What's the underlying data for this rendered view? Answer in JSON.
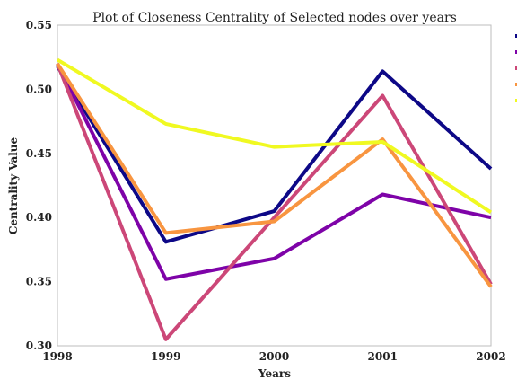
{
  "chart_data": {
    "type": "line",
    "title": "Plot of Closeness Centrality of Selected nodes over years",
    "xlabel": "Years",
    "ylabel": "Centrality Value",
    "x": [
      1998,
      1999,
      2000,
      2001,
      2002
    ],
    "x_tick_labels": [
      "1998",
      "1999",
      "2000",
      "2001",
      "2002"
    ],
    "xlim": [
      1998,
      2002
    ],
    "ylim": [
      0.3,
      0.55
    ],
    "y_ticks": [
      0.3,
      0.35,
      0.4,
      0.45,
      0.5,
      0.55
    ],
    "y_tick_labels": [
      "0.30",
      "0.35",
      "0.40",
      "0.45",
      "0.50",
      "0.55"
    ],
    "grid": false,
    "legend_position": "right-outside",
    "series": [
      {
        "name": "",
        "color": "#0d0887",
        "values": [
          0.518,
          0.381,
          0.405,
          0.514,
          0.438
        ]
      },
      {
        "name": "",
        "color": "#7e03a8",
        "values": [
          0.52,
          0.352,
          0.368,
          0.418,
          0.4
        ]
      },
      {
        "name": "",
        "color": "#cc4778",
        "values": [
          0.52,
          0.305,
          0.4,
          0.495,
          0.348
        ]
      },
      {
        "name": "",
        "color": "#f89540",
        "values": [
          0.52,
          0.388,
          0.397,
          0.461,
          0.346
        ]
      },
      {
        "name": "",
        "color": "#f0f921",
        "values": [
          0.523,
          0.473,
          0.455,
          0.459,
          0.404
        ]
      }
    ]
  }
}
